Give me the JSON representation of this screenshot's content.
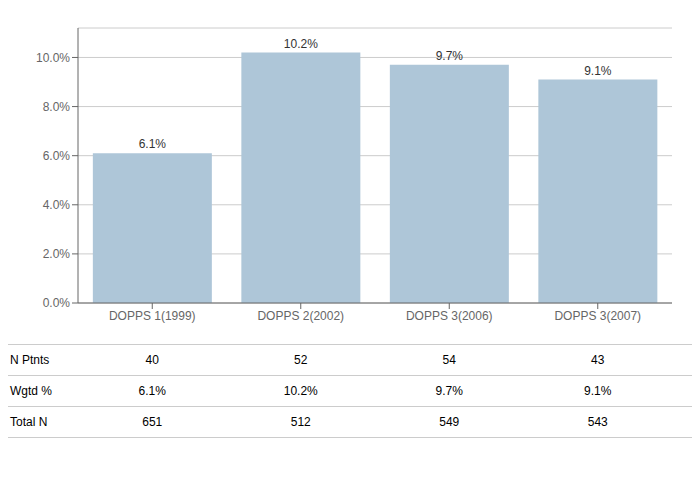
{
  "chart_data": {
    "type": "bar",
    "categories": [
      "DOPPS 1(1999)",
      "DOPPS 2(2002)",
      "DOPPS 3(2006)",
      "DOPPS 3(2007)"
    ],
    "values": [
      6.1,
      10.2,
      9.7,
      9.1
    ],
    "value_labels": [
      "6.1%",
      "10.2%",
      "9.7%",
      "9.1%"
    ],
    "data_labels": true,
    "color": "#aec6d8",
    "ylim": [
      0,
      11.2
    ],
    "yticks": [
      {
        "value": 0.0,
        "label": "0.0%"
      },
      {
        "value": 2.0,
        "label": "2.0%"
      },
      {
        "value": 4.0,
        "label": "4.0%"
      },
      {
        "value": 6.0,
        "label": "6.0%"
      },
      {
        "value": 8.0,
        "label": "8.0%"
      },
      {
        "value": 10.0,
        "label": "10.0%"
      }
    ],
    "grid": true,
    "table": {
      "row_labels": [
        "N Ptnts",
        "Wgtd %",
        "Total N"
      ],
      "rows": [
        [
          "40",
          "52",
          "54",
          "43"
        ],
        [
          "6.1%",
          "10.2%",
          "9.7%",
          "9.1%"
        ],
        [
          "651",
          "512",
          "549",
          "543"
        ]
      ]
    }
  }
}
